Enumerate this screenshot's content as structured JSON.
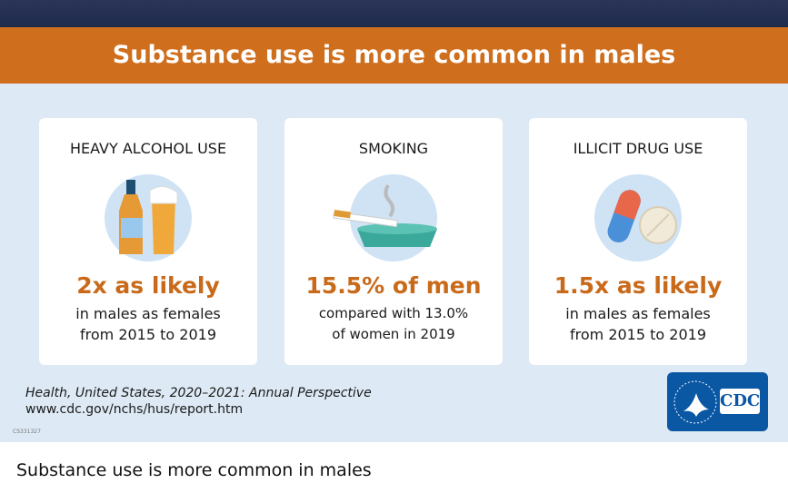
{
  "header": {
    "title": "Substance use is more common in males"
  },
  "cards": [
    {
      "title": "HEAVY ALCOHOL USE",
      "highlight": "2x as likely",
      "lines": [
        "in males as females",
        "from 2015 to 2019"
      ]
    },
    {
      "title": "SMOKING",
      "highlight": "15.5% of men",
      "lines": [
        "compared with 13.0%",
        "of women in 2019"
      ]
    },
    {
      "title": "ILLICIT DRUG USE",
      "highlight": "1.5x as likely",
      "lines": [
        "in males as females",
        "from 2015 to 2019"
      ]
    }
  ],
  "source": {
    "publication": "Health, United States, 2020–2021: Annual Perspective",
    "url": "www.cdc.gov/nchs/hus/report.htm",
    "code": "CS331327"
  },
  "logo": {
    "text": "CDC"
  },
  "caption": "Substance use is more common in males"
}
